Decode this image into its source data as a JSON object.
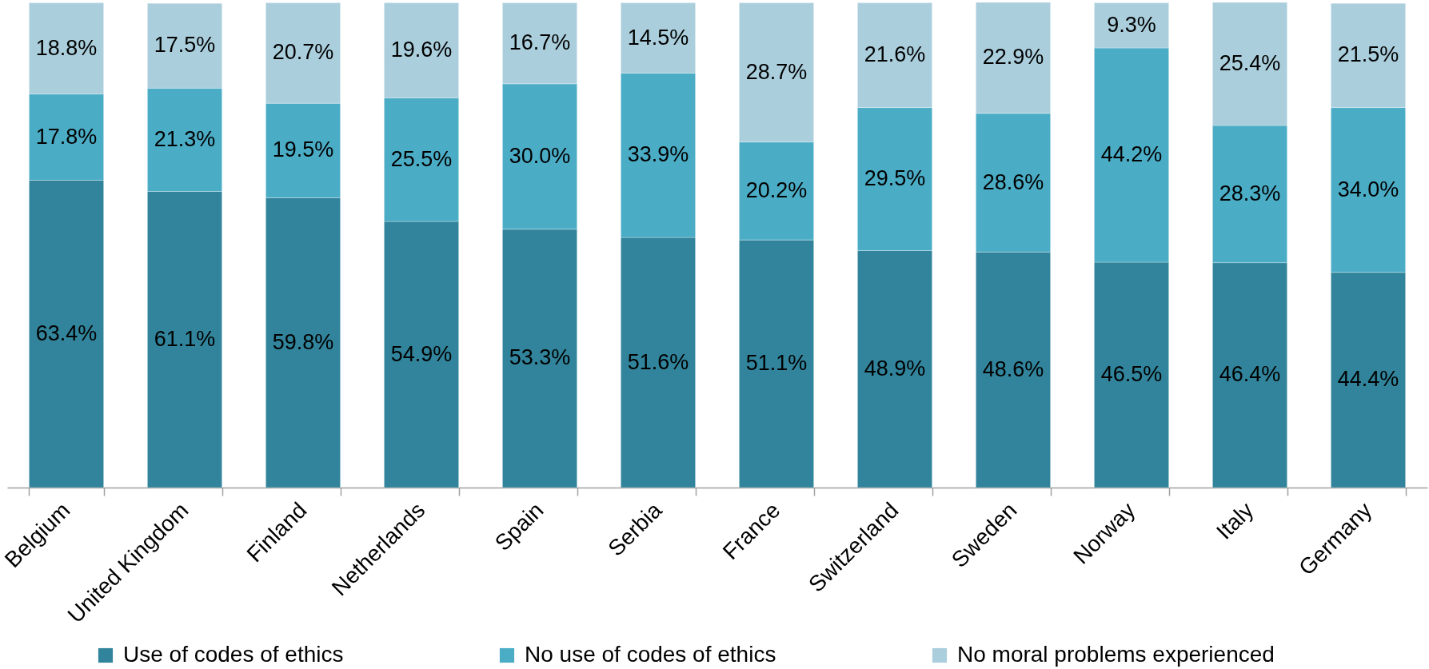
{
  "chart_data": {
    "type": "bar",
    "stacked": true,
    "tick_labels": "x",
    "legend": "bottom",
    "categories": [
      "Belgium",
      "United Kingdom",
      "Finland",
      "Netherlands",
      "Spain",
      "Serbia",
      "France",
      "Switzerland",
      "Sweden",
      "Norway",
      "Italy",
      "Germany"
    ],
    "series": [
      {
        "name": "Use of codes of ethics",
        "color": "#31849b",
        "values": [
          63.4,
          61.1,
          59.8,
          54.9,
          53.3,
          51.6,
          51.1,
          48.9,
          48.6,
          46.5,
          46.4,
          44.4
        ],
        "value_labels": [
          "63.4%",
          "61.1%",
          "59.8%",
          "54.9%",
          "53.3%",
          "51.6%",
          "51.1%",
          "48.9%",
          "48.6%",
          "46.5%",
          "46.4%",
          "44.4%"
        ]
      },
      {
        "name": "No use of codes of ethics",
        "color": "#4bacc6",
        "values": [
          17.8,
          21.3,
          19.5,
          25.5,
          30.0,
          33.9,
          20.2,
          29.5,
          28.6,
          44.2,
          28.3,
          34.0
        ],
        "value_labels": [
          "17.8%",
          "21.3%",
          "19.5%",
          "25.5%",
          "30.0%",
          "33.9%",
          "20.2%",
          "29.5%",
          "28.6%",
          "44.2%",
          "28.3%",
          "34.0%"
        ]
      },
      {
        "name": "No moral problems experienced",
        "color": "#aacedc",
        "values": [
          18.8,
          17.5,
          20.7,
          19.6,
          16.7,
          14.5,
          28.7,
          21.6,
          22.9,
          9.3,
          25.4,
          21.5
        ],
        "value_labels": [
          "18.8%",
          "17.5%",
          "20.7%",
          "19.6%",
          "16.7%",
          "14.5%",
          "28.7%",
          "21.6%",
          "22.9%",
          "9.3%",
          "25.4%",
          "21.5%"
        ]
      }
    ]
  }
}
